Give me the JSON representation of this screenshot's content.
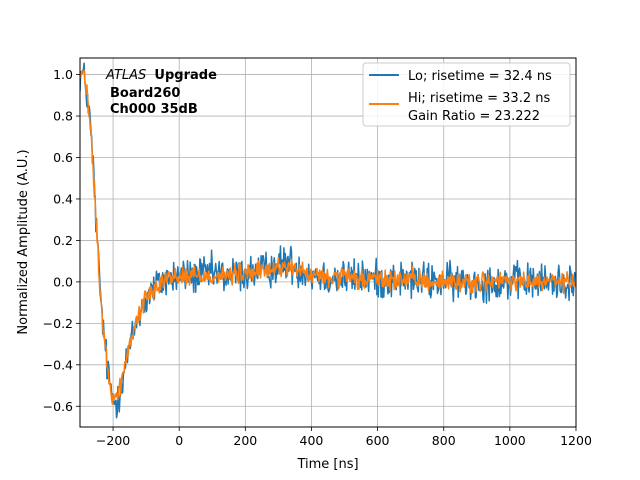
{
  "chart_data": {
    "type": "line",
    "xlabel": "Time [ns]",
    "ylabel": "Normalized Amplitude (A.U.)",
    "xlim": [
      -300,
      1200
    ],
    "ylim": [
      -0.7,
      1.08
    ],
    "x_ticks": [
      -200,
      0,
      200,
      400,
      600,
      800,
      1000,
      1200
    ],
    "y_ticks": [
      -0.6,
      -0.4,
      -0.2,
      0.0,
      0.2,
      0.4,
      0.6,
      0.8,
      1.0
    ],
    "x_tick_labels": [
      "−200",
      "0",
      "200",
      "400",
      "600",
      "800",
      "1000",
      "1200"
    ],
    "y_tick_labels": [
      "−0.6",
      "−0.4",
      "−0.2",
      "0.0",
      "0.2",
      "0.4",
      "0.6",
      "0.8",
      "1.0"
    ],
    "grid": true,
    "legend_position": "top-right",
    "annotation": {
      "italic": "ATLAS",
      "bold": "Upgrade",
      "line2": "Board260",
      "line3": "Ch000 35dB"
    },
    "series": [
      {
        "name": "Lo; risetime = 32.4 ns",
        "color": "#1f77b4",
        "noise": 0.055,
        "x": [
          -290,
          -280,
          -270,
          -260,
          -250,
          -240,
          -230,
          -220,
          -210,
          -200,
          -190,
          -180,
          -170,
          -160,
          -150,
          -140,
          -130,
          -120,
          -110,
          -100,
          -90,
          -80,
          -70,
          -60,
          -50,
          -40,
          -30,
          -20,
          0,
          50,
          100,
          150,
          200,
          250,
          300,
          330,
          350,
          400,
          450,
          500,
          550,
          600,
          650,
          700,
          800,
          900,
          1000,
          1100,
          1200
        ],
        "y": [
          1.0,
          0.92,
          0.78,
          0.55,
          0.25,
          -0.02,
          -0.22,
          -0.38,
          -0.5,
          -0.57,
          -0.58,
          -0.52,
          -0.46,
          -0.38,
          -0.32,
          -0.26,
          -0.2,
          -0.15,
          -0.12,
          -0.09,
          -0.06,
          -0.04,
          -0.02,
          -0.01,
          0.0,
          0.01,
          0.02,
          0.02,
          0.03,
          0.03,
          0.04,
          0.03,
          0.04,
          0.05,
          0.08,
          0.1,
          0.07,
          0.04,
          0.02,
          0.02,
          0.02,
          0.01,
          0.01,
          0.01,
          0.0,
          0.0,
          0.0,
          0.0,
          0.0
        ]
      },
      {
        "name": "Hi; risetime = 33.2 ns\n Gain Ratio = 23.222",
        "color": "#ff7f0e",
        "noise": 0.03,
        "x": [
          -290,
          -280,
          -270,
          -260,
          -250,
          -240,
          -230,
          -220,
          -210,
          -200,
          -190,
          -180,
          -170,
          -160,
          -150,
          -140,
          -130,
          -120,
          -110,
          -100,
          -90,
          -80,
          -70,
          -60,
          -50,
          -40,
          -30,
          -20,
          0,
          50,
          100,
          150,
          200,
          250,
          300,
          330,
          350,
          400,
          450,
          500,
          550,
          600,
          650,
          700,
          800,
          900,
          1000,
          1100,
          1200
        ],
        "y": [
          1.0,
          0.92,
          0.78,
          0.55,
          0.25,
          -0.02,
          -0.22,
          -0.38,
          -0.5,
          -0.55,
          -0.56,
          -0.51,
          -0.45,
          -0.37,
          -0.31,
          -0.25,
          -0.19,
          -0.14,
          -0.11,
          -0.08,
          -0.05,
          -0.03,
          -0.01,
          0.0,
          0.01,
          0.02,
          0.02,
          0.02,
          0.03,
          0.03,
          0.03,
          0.03,
          0.04,
          0.05,
          0.07,
          0.08,
          0.06,
          0.03,
          0.02,
          0.02,
          0.01,
          0.01,
          0.01,
          0.01,
          0.0,
          0.0,
          0.0,
          0.0,
          0.0
        ]
      }
    ]
  }
}
